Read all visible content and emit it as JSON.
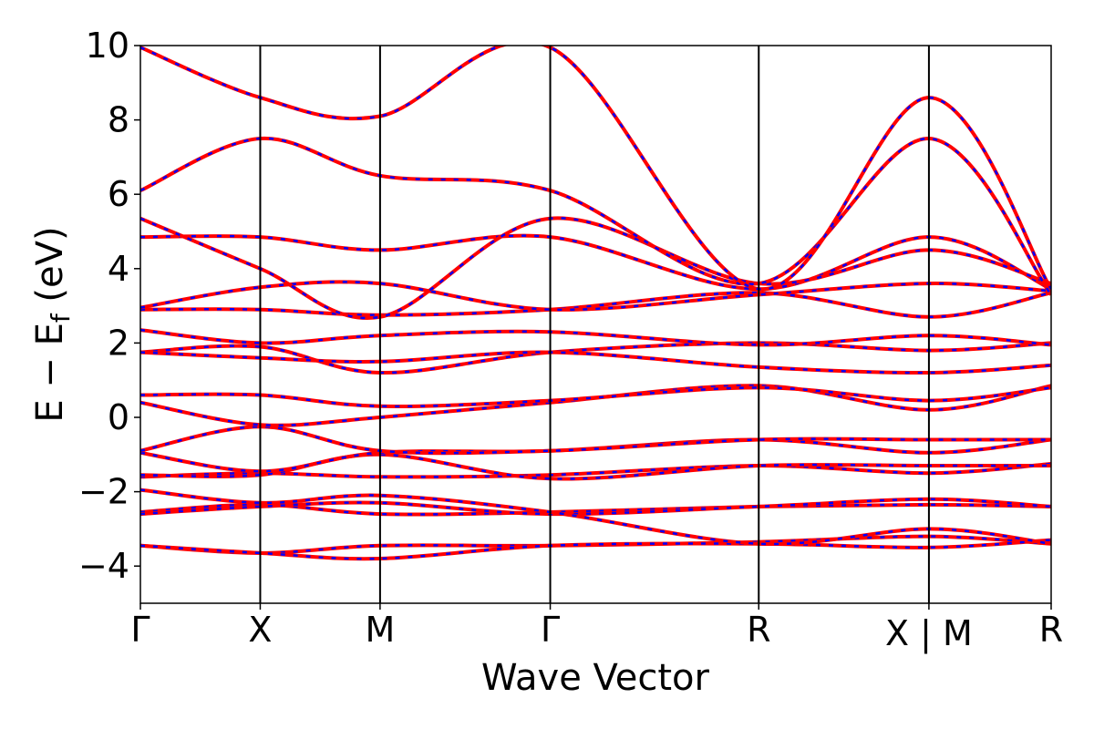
{
  "chart_data": {
    "type": "line",
    "xlabel": "Wave Vector",
    "ylabel": {
      "prefix": "E − E",
      "subscript": "f",
      "suffix": " (eV)"
    },
    "ylim": [
      -5,
      10
    ],
    "y_ticks": [
      {
        "value": 10,
        "label": "10"
      },
      {
        "value": 8,
        "label": "8"
      },
      {
        "value": 6,
        "label": "6"
      },
      {
        "value": 4,
        "label": "4"
      },
      {
        "value": 2,
        "label": "2"
      },
      {
        "value": 0,
        "label": "0"
      },
      {
        "value": -2,
        "label": "−2"
      },
      {
        "value": -4,
        "label": "−4"
      }
    ],
    "xlim": [
      0,
      7.6
    ],
    "high_symmetry_points": [
      {
        "x": 0.0,
        "label": "Γ"
      },
      {
        "x": 1.0,
        "label": "X"
      },
      {
        "x": 2.0,
        "label": "M"
      },
      {
        "x": 3.42,
        "label": "Γ"
      },
      {
        "x": 5.16,
        "label": "R"
      },
      {
        "x": 6.58,
        "label": "X | M"
      },
      {
        "x": 7.6,
        "label": "R"
      }
    ],
    "grid": false,
    "legend": "none",
    "series_style": [
      {
        "color": "#ff0000",
        "dash": "solid"
      },
      {
        "color": "#0000ff",
        "dash": "dashed"
      }
    ],
    "bands": [
      {
        "x": [
          0,
          1.0,
          2.0,
          3.42,
          5.16,
          6.58,
          7.6
        ],
        "y": [
          -3.45,
          -3.65,
          -3.45,
          -3.45,
          -3.35,
          -3.2,
          -3.4
        ]
      },
      {
        "x": [
          0,
          1.0,
          2.0,
          3.42,
          5.16,
          6.58,
          7.6
        ],
        "y": [
          -3.45,
          -3.65,
          -3.8,
          -3.45,
          -3.4,
          -3.5,
          -3.3
        ]
      },
      {
        "x": [
          0,
          1.0,
          2.0,
          3.42,
          5.16,
          6.58,
          7.6
        ],
        "y": [
          -2.55,
          -2.35,
          -2.6,
          -2.55,
          -2.4,
          -2.35,
          -2.4
        ]
      },
      {
        "x": [
          0,
          1.0,
          2.0,
          3.42,
          5.16,
          6.58,
          7.6
        ],
        "y": [
          -2.6,
          -2.4,
          -2.3,
          -2.6,
          -2.4,
          -2.2,
          -2.4
        ]
      },
      {
        "x": [
          0,
          1.0,
          2.0,
          3.42,
          5.16,
          6.58,
          7.6
        ],
        "y": [
          -1.95,
          -2.3,
          -2.1,
          -2.55,
          -3.4,
          -3.0,
          -3.4
        ]
      },
      {
        "x": [
          0,
          1.0,
          2.0,
          3.42,
          5.16,
          6.58,
          7.6
        ],
        "y": [
          -1.6,
          -1.5,
          -1.6,
          -1.55,
          -1.3,
          -1.5,
          -1.25
        ]
      },
      {
        "x": [
          0,
          1.0,
          2.0,
          3.42,
          5.16,
          6.58,
          7.6
        ],
        "y": [
          -1.55,
          -1.55,
          -1.0,
          -1.65,
          -1.3,
          -1.3,
          -1.3
        ]
      },
      {
        "x": [
          0,
          1.0,
          2.0,
          3.42,
          5.16,
          6.58,
          7.6
        ],
        "y": [
          -0.95,
          -1.45,
          -0.95,
          -0.9,
          -0.6,
          -0.95,
          -0.6
        ]
      },
      {
        "x": [
          0,
          1.0,
          2.0,
          3.42,
          5.16,
          6.58,
          7.6
        ],
        "y": [
          -0.9,
          -0.25,
          -0.9,
          -0.9,
          -0.6,
          -0.6,
          -0.6
        ]
      },
      {
        "x": [
          0,
          1.0,
          2.0,
          3.42,
          5.16,
          6.58,
          7.6
        ],
        "y": [
          0.4,
          -0.2,
          0.0,
          0.4,
          0.85,
          0.2,
          0.85
        ]
      },
      {
        "x": [
          0,
          1.0,
          2.0,
          3.42,
          5.16,
          6.58,
          7.6
        ],
        "y": [
          0.6,
          0.6,
          0.3,
          0.45,
          0.8,
          0.45,
          0.8
        ]
      },
      {
        "x": [
          0,
          1.0,
          2.0,
          3.42,
          5.16,
          6.58,
          7.6
        ],
        "y": [
          1.75,
          1.9,
          1.2,
          1.75,
          2.0,
          1.8,
          2.0
        ]
      },
      {
        "x": [
          0,
          1.0,
          2.0,
          3.42,
          5.16,
          6.58,
          7.6
        ],
        "y": [
          1.75,
          1.6,
          1.5,
          1.75,
          1.35,
          1.2,
          1.4
        ]
      },
      {
        "x": [
          0,
          1.0,
          2.0,
          3.42,
          5.16,
          6.58,
          7.6
        ],
        "y": [
          2.35,
          2.0,
          2.2,
          2.3,
          1.95,
          2.2,
          1.95
        ]
      },
      {
        "x": [
          0,
          1.0,
          2.0,
          3.42,
          5.16,
          6.58,
          7.6
        ],
        "y": [
          2.9,
          2.9,
          2.75,
          2.9,
          3.35,
          2.7,
          3.35
        ]
      },
      {
        "x": [
          0,
          1.0,
          2.0,
          3.42,
          5.16,
          6.58,
          7.6
        ],
        "y": [
          2.95,
          3.5,
          3.6,
          2.9,
          3.3,
          3.6,
          3.4
        ]
      },
      {
        "x": [
          0,
          1.0,
          2.0,
          3.42,
          5.16,
          6.58,
          7.6
        ],
        "y": [
          4.85,
          4.85,
          4.5,
          4.85,
          3.45,
          4.85,
          3.45
        ]
      },
      {
        "x": [
          0,
          1.0,
          2.0,
          3.42,
          5.16,
          6.58,
          7.6
        ],
        "y": [
          5.35,
          4.0,
          2.7,
          5.35,
          3.6,
          4.5,
          3.6
        ]
      },
      {
        "x": [
          0,
          1.0,
          2.0,
          3.42,
          5.16,
          6.58,
          7.6
        ],
        "y": [
          6.1,
          7.5,
          6.5,
          6.1,
          3.6,
          7.5,
          3.3
        ]
      },
      {
        "x": [
          0,
          1.0,
          2.0,
          3.42,
          5.16,
          6.58,
          7.6
        ],
        "y": [
          9.95,
          8.6,
          8.1,
          9.95,
          3.45,
          8.6,
          3.45
        ]
      }
    ]
  }
}
